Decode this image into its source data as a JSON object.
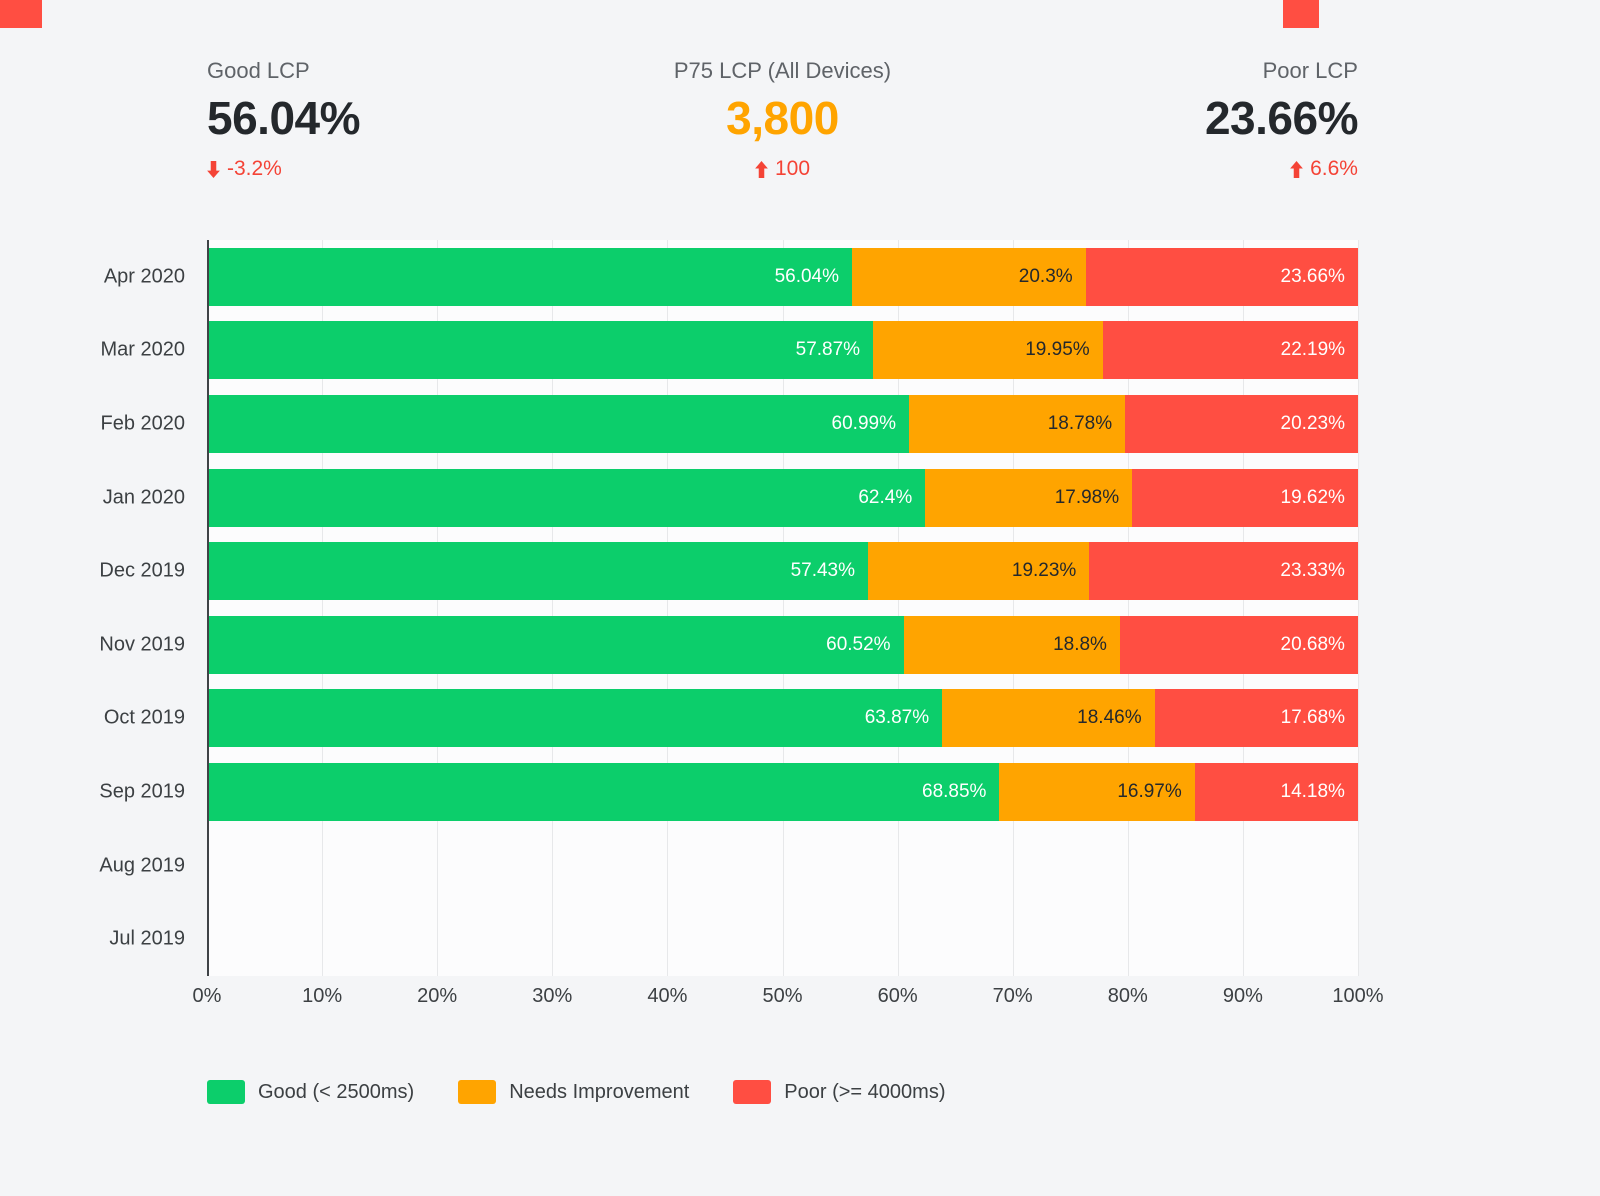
{
  "theme": {
    "green": "#0cce6b",
    "orange": "#ffa400",
    "red": "#ff4e42",
    "delta_red": "#f44336",
    "bg": "#f4f5f7",
    "plot_bg": "#fcfcfd",
    "grid": "#e7e8ea",
    "axis": "#3f4347",
    "text_dark": "#24282c",
    "text_gray": "#5f6368"
  },
  "kpis": [
    {
      "label": "Good LCP",
      "value": "56.04%",
      "delta": "-3.2%",
      "delta_dir": "down"
    },
    {
      "label": "P75 LCP (All Devices)",
      "value": "3,800",
      "delta": "100",
      "delta_dir": "up"
    },
    {
      "label": "Poor LCP",
      "value": "23.66%",
      "delta": "6.6%",
      "delta_dir": "up"
    }
  ],
  "chart_data": {
    "type": "bar",
    "orientation": "horizontal",
    "stacked": true,
    "title": "",
    "xlabel": "",
    "ylabel": "",
    "xlim": [
      0,
      100
    ],
    "grid": true,
    "legend_position": "bottom",
    "categories": [
      "Apr 2020",
      "Mar 2020",
      "Feb 2020",
      "Jan 2020",
      "Dec 2019",
      "Nov 2019",
      "Oct 2019",
      "Sep 2019",
      "Aug 2019",
      "Jul 2019"
    ],
    "x_ticks": [
      "0%",
      "10%",
      "20%",
      "30%",
      "40%",
      "50%",
      "60%",
      "70%",
      "80%",
      "90%",
      "100%"
    ],
    "series": [
      {
        "name": "Good (< 2500ms)",
        "key": "good",
        "color": "#0cce6b",
        "label_color": "#ffffff",
        "values": [
          56.04,
          57.87,
          60.99,
          62.4,
          57.43,
          60.52,
          63.87,
          68.85,
          null,
          null
        ]
      },
      {
        "name": "Needs Improvement",
        "key": "needs-improvement",
        "color": "#ffa400",
        "label_color": "#24282c",
        "values": [
          20.3,
          19.95,
          18.78,
          17.98,
          19.23,
          18.8,
          18.46,
          16.97,
          null,
          null
        ]
      },
      {
        "name": "Poor (>= 4000ms)",
        "key": "poor",
        "color": "#ff4e42",
        "label_color": "#ffffff",
        "values": [
          23.66,
          22.19,
          20.23,
          19.62,
          23.33,
          20.68,
          17.68,
          14.18,
          null,
          null
        ]
      }
    ]
  }
}
